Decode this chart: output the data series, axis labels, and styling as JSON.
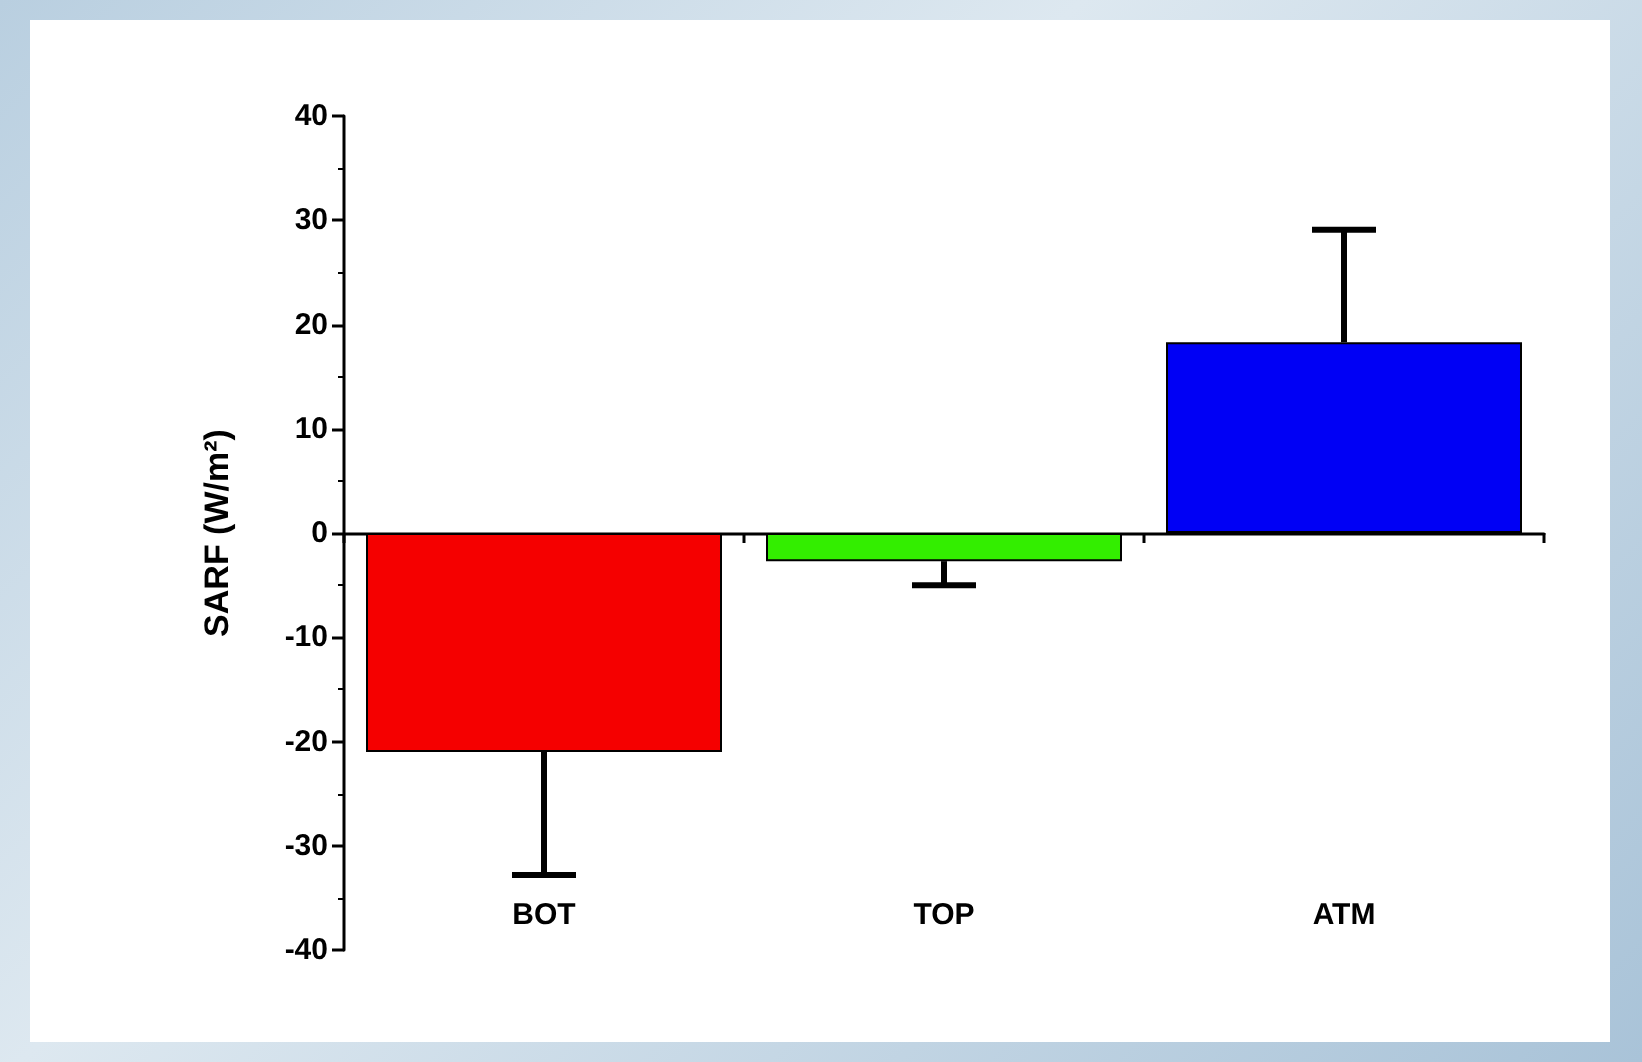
{
  "chart_data": {
    "type": "bar",
    "ylabel": "SARF (W/m²)",
    "categories": [
      "BOT",
      "TOP",
      "ATM"
    ],
    "values": [
      -21,
      -2.7,
      18.3
    ],
    "colors": [
      "#f50000",
      "#33ee00",
      "#0000f5"
    ],
    "errors": [
      [
        -32.8,
        -21
      ],
      [
        -5,
        -2.7
      ],
      [
        18.3,
        29.1
      ]
    ],
    "ylim": [
      -40,
      40
    ],
    "yticks": [
      -40,
      -30,
      -20,
      -10,
      0,
      10,
      20,
      30,
      40
    ]
  }
}
